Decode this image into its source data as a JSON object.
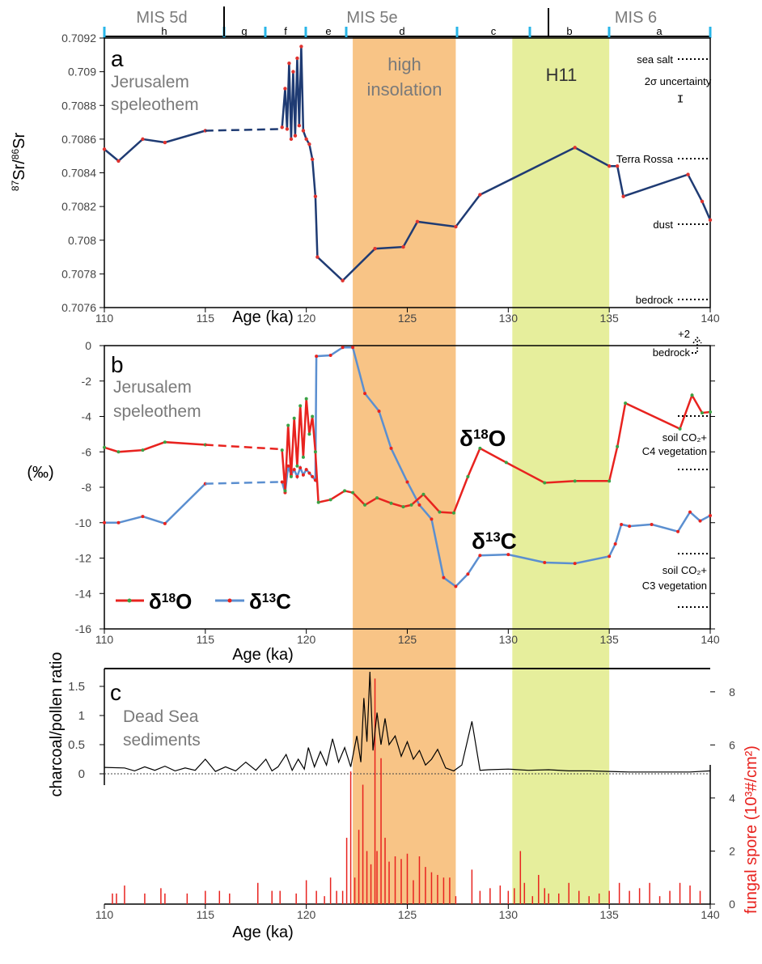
{
  "colors": {
    "sr_line": "#1f3b73",
    "sr_dots": "#e0332f",
    "d18o": "#e8231f",
    "d13c": "#5b8fd0",
    "d13c_dots": "#3aa244",
    "charcoal": "#000000",
    "spore": "#e8231f",
    "insolation_band": "#f8c486",
    "h11_band": "#e6ee9c",
    "mis_tick": "#29b6e8",
    "label_gray": "#7a7a7a"
  },
  "header": {
    "mis_labels": [
      "MIS 5d",
      "MIS 5e",
      "MIS 6"
    ],
    "substage_labels": [
      "h",
      "g",
      "f",
      "e",
      "d",
      "c",
      "b",
      "a"
    ]
  },
  "shading": {
    "insolation": {
      "label_line1": "high",
      "label_line2": "insolation",
      "x_range": [
        122.3,
        127.4
      ]
    },
    "h11": {
      "label": "H11",
      "x_range": [
        130.2,
        135.0
      ]
    }
  },
  "chart_data": [
    {
      "id": "a",
      "type": "line",
      "panel_letter": "a",
      "annotation_line1": "Jerusalem",
      "annotation_line2": "speleothem",
      "ylabel": "87Sr/86Sr",
      "xlabel": "Age (ka)",
      "xlim": [
        110,
        140
      ],
      "ylim": [
        0.7076,
        0.7092
      ],
      "yticks": [
        "0.7076",
        "0.7078",
        "0.708",
        "0.7082",
        "0.7084",
        "0.7086",
        "0.7088",
        "0.709",
        "0.7092"
      ],
      "xticks": [
        "110",
        "115",
        "120",
        "125",
        "130",
        "135",
        "140"
      ],
      "series": [
        {
          "segment": "solid_early",
          "x": [
            110.0,
            110.7,
            111.9,
            113.0,
            115.0
          ],
          "y": [
            0.70854,
            0.70847,
            0.7086,
            0.70858,
            0.70865
          ]
        },
        {
          "segment": "dashed_gap",
          "x": [
            115.0,
            118.8
          ],
          "y": [
            0.70865,
            0.70866
          ]
        },
        {
          "segment": "solid_main",
          "x": [
            118.8,
            118.95,
            119.05,
            119.15,
            119.25,
            119.35,
            119.45,
            119.55,
            119.65,
            119.75,
            119.85,
            120.0,
            120.15,
            120.3,
            120.45,
            120.55,
            121.8,
            123.4,
            124.8,
            125.5,
            127.4,
            128.6,
            133.3,
            135.0,
            135.4,
            135.7,
            138.9,
            139.6,
            140.0
          ],
          "y": [
            0.70867,
            0.7089,
            0.70866,
            0.70905,
            0.7086,
            0.709,
            0.70862,
            0.70908,
            0.70868,
            0.70915,
            0.70865,
            0.7086,
            0.70857,
            0.70848,
            0.70826,
            0.7079,
            0.70776,
            0.70795,
            0.70796,
            0.70811,
            0.70808,
            0.70827,
            0.70855,
            0.70844,
            0.70844,
            0.70826,
            0.70839,
            0.70823,
            0.70812
          ]
        }
      ],
      "right_annotations": [
        "sea salt",
        "2σ uncertainty",
        "Terra Rossa",
        "dust",
        "bedrock"
      ]
    },
    {
      "id": "b",
      "type": "line",
      "panel_letter": "b",
      "annotation_line1": "Jerusalem",
      "annotation_line2": "speleothem",
      "ylabel": "(‰)",
      "xlabel": "Age (ka)",
      "xlim": [
        110,
        140
      ],
      "ylim": [
        -16,
        0
      ],
      "yticks": [
        "-16",
        "-14",
        "-12",
        "-10",
        "-8",
        "-6",
        "-4",
        "-2",
        "0"
      ],
      "xticks": [
        "110",
        "115",
        "120",
        "125",
        "130",
        "135",
        "140"
      ],
      "series": [
        {
          "name": "δ18O",
          "segment": "solid_early",
          "x": [
            110.0,
            110.7,
            111.9,
            113.0,
            115.0
          ],
          "y": [
            -5.75,
            -6.0,
            -5.9,
            -5.45,
            -5.6
          ]
        },
        {
          "name": "δ18O",
          "segment": "dashed_gap",
          "x": [
            115.0,
            118.8
          ],
          "y": [
            -5.6,
            -5.85
          ]
        },
        {
          "name": "δ18O",
          "segment": "solid_main",
          "x": [
            118.8,
            118.95,
            119.1,
            119.25,
            119.4,
            119.55,
            119.7,
            119.85,
            120.0,
            120.15,
            120.3,
            120.45,
            120.6,
            121.2,
            121.9,
            122.3,
            122.9,
            123.5,
            124.2,
            124.8,
            125.2,
            125.8,
            126.6,
            127.3,
            128.0,
            128.6,
            129.9,
            131.8,
            133.3,
            135.0,
            135.4,
            135.8,
            138.5,
            139.1,
            139.6,
            140.0
          ],
          "y": [
            -5.9,
            -8.2,
            -4.5,
            -7.4,
            -4.1,
            -6.8,
            -3.4,
            -6.3,
            -3.0,
            -5.0,
            -4.0,
            -6.0,
            -8.85,
            -8.7,
            -8.2,
            -8.3,
            -9.0,
            -8.6,
            -8.9,
            -9.1,
            -9.0,
            -8.4,
            -9.4,
            -9.45,
            -7.4,
            -5.8,
            -6.6,
            -7.75,
            -7.65,
            -7.65,
            -5.7,
            -3.25,
            -4.7,
            -2.8,
            -3.8,
            -3.75
          ]
        },
        {
          "name": "δ13C",
          "segment": "solid_early",
          "x": [
            110.0,
            110.7,
            111.9,
            113.0,
            115.0
          ],
          "y": [
            -10.0,
            -10.0,
            -9.65,
            -10.05,
            -7.8
          ]
        },
        {
          "name": "δ13C",
          "segment": "dashed_gap",
          "x": [
            115.0,
            118.8
          ],
          "y": [
            -7.8,
            -7.7
          ]
        },
        {
          "name": "δ13C",
          "segment": "solid_main",
          "x": [
            118.8,
            118.95,
            119.1,
            119.25,
            119.4,
            119.55,
            119.7,
            119.85,
            120.0,
            120.15,
            120.3,
            120.45,
            120.5,
            121.2,
            121.8,
            122.3,
            122.9,
            123.6,
            124.2,
            125.0,
            125.6,
            126.2,
            126.8,
            127.4,
            128.0,
            128.6,
            130.0,
            131.8,
            133.3,
            135.0,
            135.3,
            135.6,
            136.0,
            137.1,
            138.4,
            139.0,
            139.5,
            140.0
          ],
          "y": [
            -7.7,
            -8.3,
            -6.8,
            -7.3,
            -7.0,
            -7.4,
            -6.9,
            -7.3,
            -7.0,
            -7.2,
            -7.4,
            -7.6,
            -0.6,
            -0.55,
            -0.1,
            -0.1,
            -2.7,
            -3.7,
            -5.8,
            -7.7,
            -9.0,
            -9.8,
            -13.1,
            -13.6,
            -12.9,
            -11.85,
            -11.8,
            -12.25,
            -12.3,
            -11.9,
            -11.2,
            -10.1,
            -10.2,
            -10.1,
            -10.5,
            -9.4,
            -9.9,
            -9.6
          ]
        }
      ],
      "labels": {
        "d18o_label": "δ18O",
        "d13c_label": "δ13C"
      },
      "legend": {
        "items": [
          "δ18O",
          "δ13C"
        ],
        "position": "bottom-left"
      },
      "right_annotations": [
        "+2",
        "bedrock",
        "soil CO₂+",
        "C4 vegetation",
        "soil CO₂+",
        "C3 vegetation"
      ]
    },
    {
      "id": "c",
      "type": "line",
      "panel_letter": "c",
      "annotation_line1": "Dead Sea",
      "annotation_line2": "sediments",
      "ylabel": "charcoal/pollen ratio",
      "y2label": "fungal spore (10³#/cm²)",
      "xlabel": "Age (ka)",
      "xlim": [
        110,
        140
      ],
      "ylim": [
        0,
        1.75
      ],
      "y2lim": [
        0,
        9
      ],
      "yticks": [
        "0",
        "0.5",
        "1",
        "1.5"
      ],
      "y2ticks": [
        "0",
        "2",
        "4",
        "6",
        "8"
      ],
      "xticks": [
        "110",
        "115",
        "120",
        "125",
        "130",
        "135",
        "140"
      ],
      "series": [
        {
          "name": "charcoal/pollen ratio",
          "x": [
            110.0,
            111.0,
            111.5,
            112.0,
            112.5,
            113.0,
            113.5,
            114.0,
            114.5,
            115.0,
            115.5,
            116.0,
            116.5,
            117.0,
            117.5,
            118.0,
            118.3,
            118.6,
            119.0,
            119.3,
            119.6,
            119.9,
            120.1,
            120.4,
            120.7,
            121.0,
            121.3,
            121.6,
            121.9,
            122.2,
            122.5,
            122.7,
            122.85,
            123.0,
            123.15,
            123.3,
            123.5,
            123.7,
            123.9,
            124.1,
            124.4,
            124.7,
            125.0,
            125.3,
            125.6,
            125.9,
            126.2,
            126.5,
            126.9,
            127.3,
            127.7,
            128.0,
            128.2,
            128.6,
            129.0,
            130.0,
            131.0,
            132.0,
            133.0,
            134.0,
            135.0,
            136.0,
            137.0,
            138.0,
            139.0,
            140.0
          ],
          "y": [
            0.11,
            0.1,
            0.05,
            0.12,
            0.06,
            0.13,
            0.05,
            0.1,
            0.06,
            0.25,
            0.04,
            0.12,
            0.05,
            0.2,
            0.06,
            0.25,
            0.05,
            0.12,
            0.33,
            0.06,
            0.25,
            0.08,
            0.45,
            0.12,
            0.38,
            0.15,
            0.6,
            0.2,
            0.45,
            0.12,
            0.65,
            0.2,
            1.3,
            0.55,
            1.75,
            0.4,
            1.05,
            0.5,
            0.95,
            0.5,
            0.65,
            0.3,
            0.55,
            0.25,
            0.4,
            0.15,
            0.25,
            0.42,
            0.1,
            0.05,
            0.15,
            0.6,
            0.9,
            0.06,
            0.07,
            0.08,
            0.06,
            0.07,
            0.05,
            0.05,
            0.04,
            0.03,
            0.03,
            0.03,
            0.03,
            0.05
          ]
        },
        {
          "name": "fungal spore",
          "type": "bar",
          "x": [
            110.4,
            110.6,
            111.0,
            112.0,
            112.8,
            113.0,
            114.1,
            115.0,
            115.7,
            116.2,
            117.6,
            118.3,
            118.7,
            119.5,
            120.0,
            120.5,
            120.9,
            121.2,
            121.5,
            121.8,
            122.0,
            122.2,
            122.4,
            122.6,
            122.8,
            123.0,
            123.2,
            123.4,
            123.5,
            123.7,
            123.9,
            124.1,
            124.4,
            124.7,
            125.0,
            125.3,
            125.6,
            125.9,
            126.2,
            126.5,
            126.8,
            127.1,
            127.4,
            128.2,
            128.6,
            129.1,
            129.6,
            130.0,
            130.3,
            130.6,
            130.8,
            131.2,
            131.5,
            131.8,
            132.0,
            132.5,
            133.0,
            133.5,
            134.0,
            134.5,
            135.0,
            135.5,
            136.0,
            136.5,
            137.0,
            137.5,
            138.0,
            138.5,
            139.0,
            139.5
          ],
          "y": [
            0.4,
            0.4,
            0.7,
            0.4,
            0.6,
            0.4,
            0.4,
            0.5,
            0.5,
            0.4,
            0.8,
            0.5,
            0.5,
            0.4,
            0.9,
            0.5,
            0.3,
            1.0,
            0.5,
            0.5,
            2.5,
            5.0,
            1.0,
            2.8,
            4.5,
            2.0,
            1.5,
            8.5,
            2.0,
            5.5,
            2.5,
            1.6,
            1.8,
            1.7,
            1.9,
            0.9,
            1.8,
            1.4,
            1.2,
            1.1,
            1.0,
            1.0,
            0.3,
            1.3,
            0.5,
            0.6,
            0.7,
            0.5,
            0.6,
            2.0,
            0.8,
            0.3,
            1.1,
            0.6,
            0.4,
            0.4,
            0.8,
            0.5,
            0.3,
            0.4,
            0.5,
            0.8,
            0.5,
            0.6,
            0.8,
            0.3,
            0.5,
            0.8,
            0.7,
            0.5
          ]
        }
      ]
    }
  ]
}
